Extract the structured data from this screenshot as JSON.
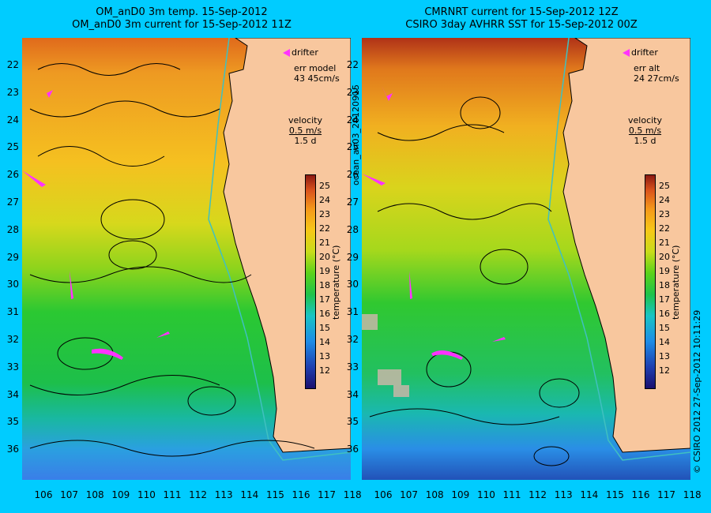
{
  "left_panel": {
    "title_line1": "OM_anD0 3m temp. 15-Sep-2012",
    "title_line2": "OM_anD0 3m current for 15-Sep-2012 11Z",
    "drifter_label": "drifter",
    "err_label": "err model",
    "err_value": "43 45cm/s",
    "velocity_label": "velocity",
    "velocity_scale": "0.5 m/s",
    "velocity_time": "1.5 d"
  },
  "right_panel": {
    "title_line1": "CMRNRT current for 15-Sep-2012 12Z",
    "title_line2": "CSIRO 3day AVHRR SST for 15-Sep-2012 00Z",
    "drifter_label": "drifter",
    "err_label": "err alt",
    "err_value": "24 27cm/s",
    "velocity_label": "velocity",
    "velocity_scale": "0.5 m/s",
    "velocity_time": "1.5 d"
  },
  "latitude_ticks": [
    "22",
    "23",
    "24",
    "25",
    "26",
    "27",
    "28",
    "29",
    "30",
    "31",
    "32",
    "33",
    "34",
    "35",
    "36"
  ],
  "longitude_ticks": [
    "106",
    "107",
    "108",
    "109",
    "110",
    "111",
    "112",
    "113",
    "114",
    "115",
    "116",
    "117",
    "118"
  ],
  "colorbar": {
    "ticks": [
      "25",
      "24",
      "23",
      "22",
      "21",
      "20",
      "19",
      "18",
      "17",
      "16",
      "15",
      "14",
      "13",
      "12"
    ],
    "label": "temperature (°C)"
  },
  "side_text": {
    "run_id": "ocean_an03_20120915",
    "credit": "© CSIRO 2012  27-Sep-2012 10:11:29"
  },
  "colors": {
    "background": "#00ccff",
    "land": "#f8c79e",
    "drifter": "#ff33ff",
    "shelf_line": "#40c0c0"
  }
}
